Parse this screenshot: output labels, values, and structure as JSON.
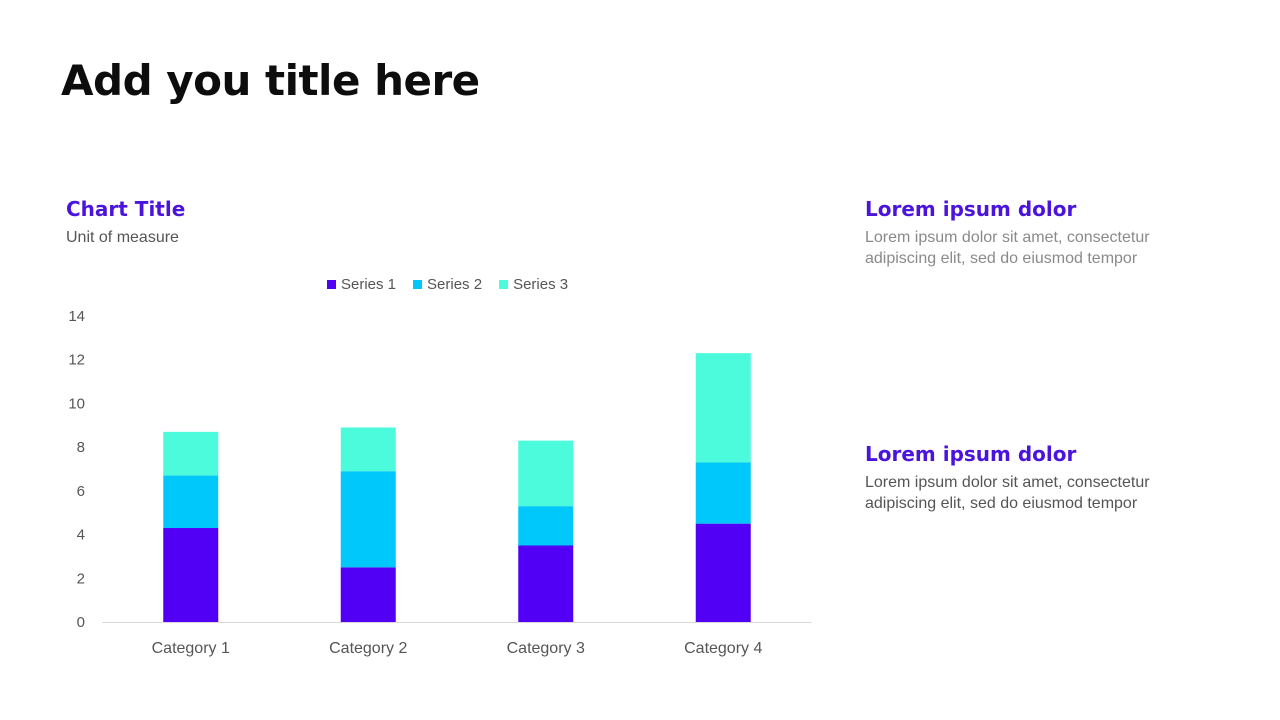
{
  "slide": {
    "title": "Add you title here"
  },
  "chart_header": {
    "title": "Chart Title",
    "subtitle": "Unit of measure"
  },
  "chart_data": {
    "type": "bar",
    "stacked": true,
    "title": "Chart Title",
    "subtitle": "Unit of measure",
    "categories": [
      "Category 1",
      "Category 2",
      "Category 3",
      "Category 4"
    ],
    "series": [
      {
        "name": "Series 1",
        "color": "#5200f5",
        "values": [
          4.3,
          2.5,
          3.5,
          4.5
        ]
      },
      {
        "name": "Series 2",
        "color": "#00c8fa",
        "values": [
          2.4,
          4.4,
          1.8,
          2.8
        ]
      },
      {
        "name": "Series 3",
        "color": "#4cfadc",
        "values": [
          2.0,
          2.0,
          3.0,
          5.0
        ]
      }
    ],
    "ylim": [
      0,
      14
    ],
    "yticks": [
      0,
      2,
      4,
      6,
      8,
      10,
      12,
      14
    ],
    "grid": false,
    "legend": "top"
  },
  "side": {
    "blocks": [
      {
        "heading": "Lorem ipsum dolor",
        "text": "Lorem ipsum dolor sit amet, consectetur adipiscing elit, sed do eiusmod tempor"
      },
      {
        "heading": "Lorem ipsum dolor",
        "text": "Lorem ipsum dolor sit amet, consectetur adipiscing elit, sed do eiusmod tempor"
      }
    ]
  },
  "colors": {
    "accent": "#4a14dc",
    "title": "#0d0d0d",
    "axis_text": "#555555"
  }
}
